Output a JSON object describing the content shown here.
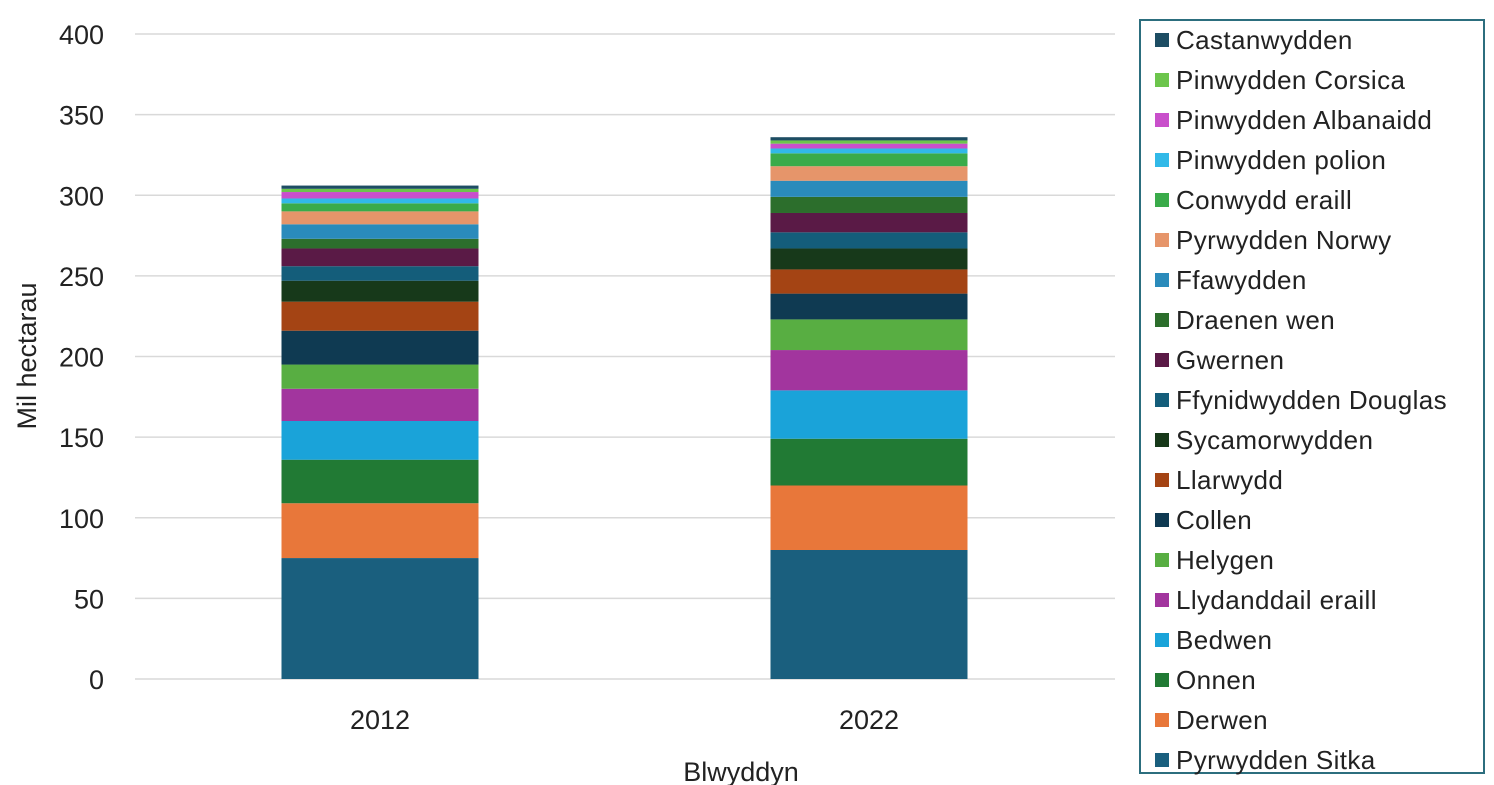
{
  "chart_data": {
    "type": "bar",
    "stacked": true,
    "categories": [
      "2012",
      "2022"
    ],
    "xlabel": "Blwyddyn",
    "ylabel": "Mil hectarau",
    "ylim": [
      0,
      400
    ],
    "yticks": [
      0,
      50,
      100,
      150,
      200,
      250,
      300,
      350,
      400
    ],
    "grid": true,
    "legend_position": "right",
    "series": [
      {
        "name": "Pyrwydden Sitka",
        "color": "#1a5f7e",
        "values": [
          75,
          80
        ]
      },
      {
        "name": "Derwen",
        "color": "#e8773a",
        "values": [
          34,
          40
        ]
      },
      {
        "name": "Onnen",
        "color": "#217a34",
        "values": [
          27,
          29
        ]
      },
      {
        "name": "Bedwen",
        "color": "#1aa3d9",
        "values": [
          24,
          30
        ]
      },
      {
        "name": "Llydanddail eraill",
        "color": "#a2359e",
        "values": [
          20,
          25
        ]
      },
      {
        "name": "Helygen",
        "color": "#58ae42",
        "values": [
          15,
          19
        ]
      },
      {
        "name": "Collen",
        "color": "#0f3a52",
        "values": [
          21,
          16
        ]
      },
      {
        "name": "Llarwydd",
        "color": "#a44414",
        "values": [
          18,
          15
        ]
      },
      {
        "name": "Sycamorwydden",
        "color": "#17391a",
        "values": [
          13,
          13
        ]
      },
      {
        "name": "Ffynidwydden Douglas",
        "color": "#145d7a",
        "values": [
          9,
          10
        ]
      },
      {
        "name": "Gwernen",
        "color": "#5a1a46",
        "values": [
          11,
          12
        ]
      },
      {
        "name": "Draenen wen",
        "color": "#2c6e2c",
        "values": [
          6,
          10
        ]
      },
      {
        "name": "Ffawydden",
        "color": "#2a8bbb",
        "values": [
          9,
          10
        ]
      },
      {
        "name": "Pyrwydden Norwy",
        "color": "#e6956a",
        "values": [
          8,
          9
        ]
      },
      {
        "name": "Conwydd eraill",
        "color": "#3aab4a",
        "values": [
          5,
          8
        ]
      },
      {
        "name": "Pinwydden polion",
        "color": "#31b9e8",
        "values": [
          3,
          3
        ]
      },
      {
        "name": "Pinwydden Albanaidd",
        "color": "#c94fcb",
        "values": [
          4,
          3
        ]
      },
      {
        "name": "Pinwydden Corsica",
        "color": "#6cc54c",
        "values": [
          2,
          2
        ]
      },
      {
        "name": "Castanwydden",
        "color": "#1d4d63",
        "values": [
          2,
          2
        ]
      }
    ]
  }
}
